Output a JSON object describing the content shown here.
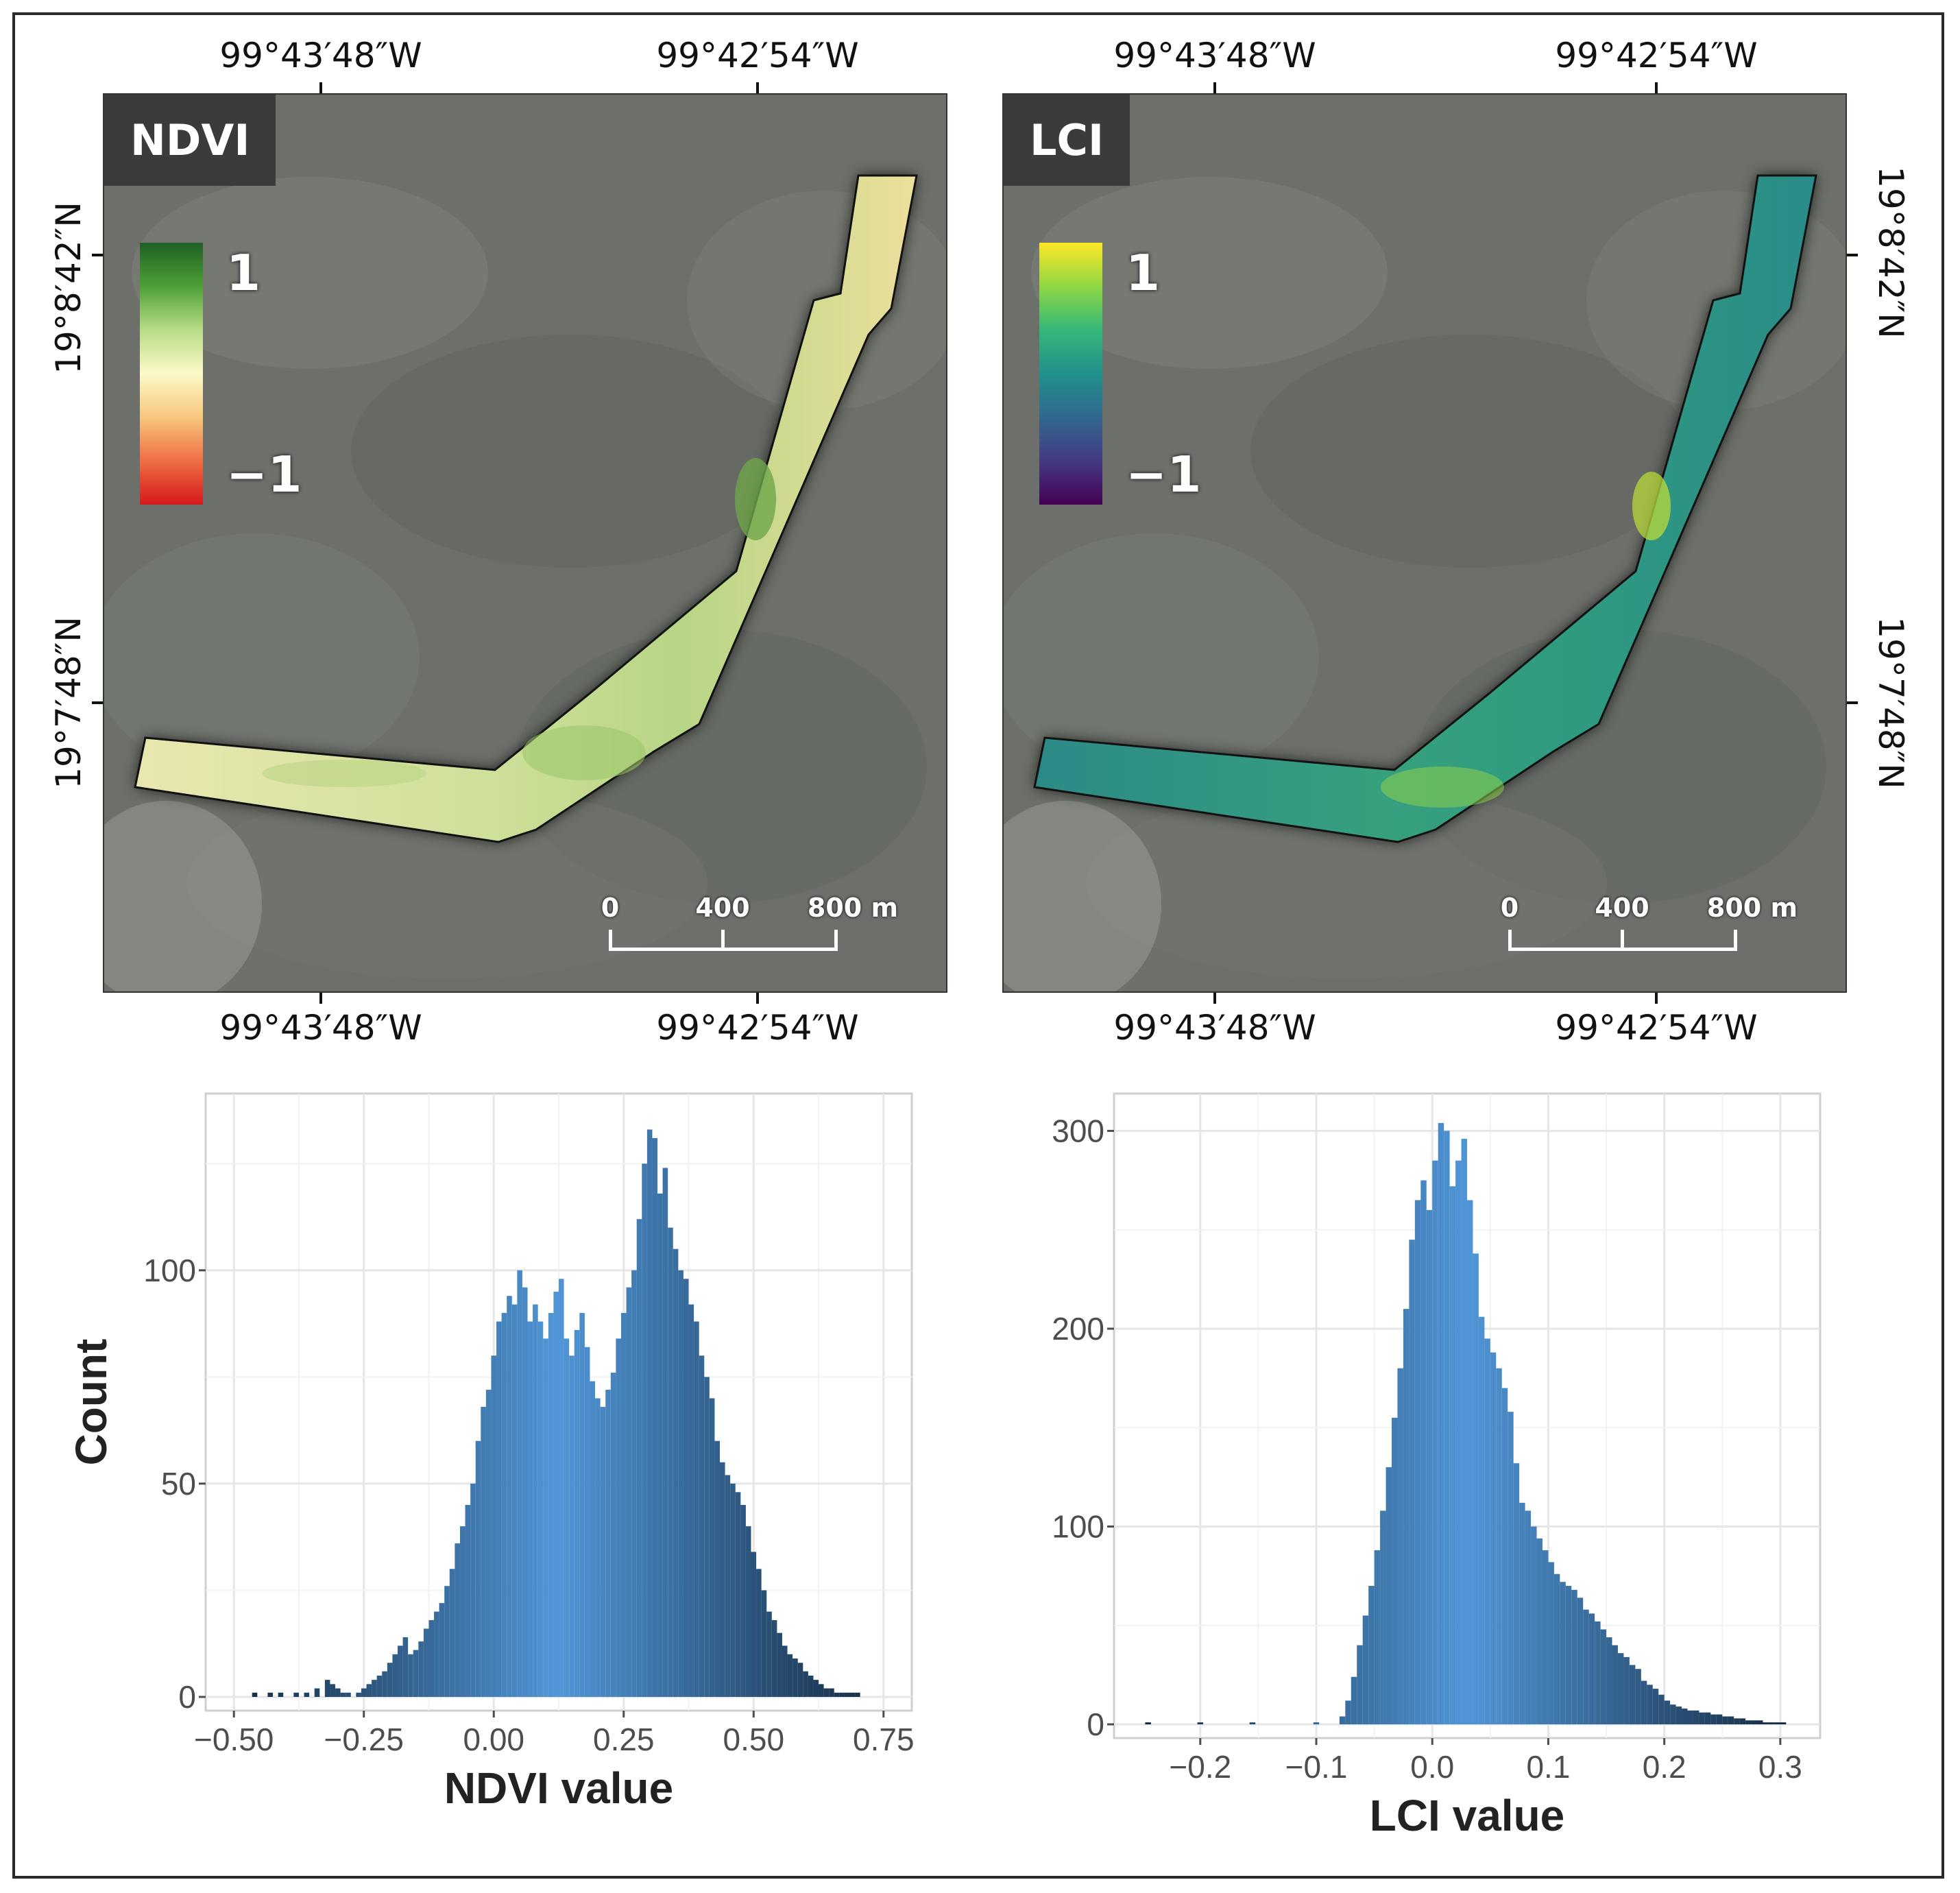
{
  "maps": [
    {
      "title": "NDVI",
      "colorbar": {
        "max_label": "1",
        "min_label": "−1",
        "colors": [
          "#1f5f25",
          "#4fa036",
          "#b7dd86",
          "#fbf9c8",
          "#f7c77e",
          "#ee6d43",
          "#d7191c"
        ]
      },
      "strip_color": "#d8dc9a",
      "coords": {
        "top": [
          "99°43′48″W",
          "99°42′54″W"
        ],
        "bottom": [
          "99°43′48″W",
          "99°42′54″W"
        ],
        "left": [
          "19°8′42″N",
          "19°7′48″N"
        ]
      },
      "scalebar": {
        "labels": [
          "0",
          "400",
          "800 m"
        ]
      }
    },
    {
      "title": "LCI",
      "colorbar": {
        "max_label": "1",
        "min_label": "−1",
        "colors": [
          "#fde725",
          "#90d743",
          "#35b779",
          "#21918c",
          "#31688e",
          "#443983",
          "#440154"
        ]
      },
      "strip_color": "#2a8f86",
      "coords": {
        "top": [
          "99°43′48″W",
          "99°42′54″W"
        ],
        "bottom": [
          "99°43′48″W",
          "99°42′54″W"
        ],
        "right": [
          "19°8′42″N",
          "19°7′48″N"
        ]
      },
      "scalebar": {
        "labels": [
          "0",
          "400",
          "800 m"
        ]
      }
    }
  ],
  "chart_data": [
    {
      "type": "bar",
      "xlabel": "NDVI value",
      "ylabel": "Count",
      "xlim": [
        -0.5,
        0.75
      ],
      "ylim": [
        0,
        135
      ],
      "xticks": [
        -0.5,
        -0.25,
        0.0,
        0.25,
        0.5,
        0.75
      ],
      "xtick_labels": [
        "−0.50",
        "−0.25",
        "0.00",
        "0.25",
        "0.50",
        "0.75"
      ],
      "yticks": [
        0,
        50,
        100
      ],
      "ytick_labels": [
        "0",
        "50",
        "100"
      ],
      "grid": true,
      "x": [
        -0.46,
        -0.43,
        -0.41,
        -0.38,
        -0.36,
        -0.34,
        -0.32,
        -0.31,
        -0.3,
        -0.29,
        -0.28,
        -0.26,
        -0.25,
        -0.24,
        -0.23,
        -0.22,
        -0.21,
        -0.2,
        -0.19,
        -0.18,
        -0.17,
        -0.16,
        -0.15,
        -0.14,
        -0.13,
        -0.12,
        -0.11,
        -0.1,
        -0.09,
        -0.08,
        -0.07,
        -0.06,
        -0.05,
        -0.04,
        -0.03,
        -0.02,
        -0.01,
        0.0,
        0.01,
        0.02,
        0.03,
        0.04,
        0.05,
        0.06,
        0.07,
        0.08,
        0.09,
        0.1,
        0.11,
        0.12,
        0.13,
        0.14,
        0.15,
        0.16,
        0.17,
        0.18,
        0.19,
        0.2,
        0.21,
        0.22,
        0.23,
        0.24,
        0.25,
        0.26,
        0.27,
        0.28,
        0.29,
        0.3,
        0.31,
        0.32,
        0.33,
        0.34,
        0.35,
        0.36,
        0.37,
        0.38,
        0.39,
        0.4,
        0.41,
        0.42,
        0.43,
        0.44,
        0.45,
        0.46,
        0.47,
        0.48,
        0.49,
        0.5,
        0.51,
        0.52,
        0.53,
        0.54,
        0.55,
        0.56,
        0.57,
        0.58,
        0.59,
        0.6,
        0.61,
        0.62,
        0.63,
        0.64,
        0.65,
        0.66,
        0.67,
        0.68,
        0.69,
        0.7
      ],
      "values": [
        1,
        1,
        1,
        1,
        1,
        2,
        4,
        3,
        2,
        1,
        1,
        1,
        2,
        3,
        4,
        5,
        6,
        8,
        10,
        12,
        14,
        10,
        11,
        13,
        16,
        18,
        20,
        22,
        26,
        30,
        36,
        40,
        45,
        50,
        60,
        68,
        72,
        80,
        88,
        90,
        94,
        92,
        100,
        96,
        88,
        92,
        88,
        84,
        90,
        95,
        98,
        84,
        80,
        86,
        90,
        82,
        74,
        70,
        68,
        72,
        76,
        84,
        90,
        96,
        100,
        112,
        125,
        133,
        131,
        118,
        124,
        110,
        105,
        100,
        98,
        92,
        88,
        80,
        75,
        70,
        60,
        55,
        52,
        50,
        48,
        45,
        40,
        34,
        30,
        25,
        20,
        18,
        15,
        12,
        10,
        9,
        8,
        6,
        5,
        4,
        3,
        2,
        2,
        1,
        1,
        1,
        1,
        1
      ]
    },
    {
      "type": "bar",
      "xlabel": "LCI value",
      "ylabel": "",
      "xlim": [
        -0.25,
        0.31
      ],
      "ylim": [
        0,
        305
      ],
      "xticks": [
        -0.2,
        -0.1,
        0.0,
        0.1,
        0.2,
        0.3
      ],
      "xtick_labels": [
        "−0.2",
        "−0.1",
        "0.0",
        "0.1",
        "0.2",
        "0.3"
      ],
      "yticks": [
        0,
        100,
        200,
        300
      ],
      "ytick_labels": [
        "0",
        "100",
        "200",
        "300"
      ],
      "grid": true,
      "x": [
        -0.245,
        -0.2,
        -0.155,
        -0.1,
        -0.0775,
        -0.0725,
        -0.0675,
        -0.0625,
        -0.0575,
        -0.0525,
        -0.0475,
        -0.0425,
        -0.0375,
        -0.0325,
        -0.0275,
        -0.0225,
        -0.0175,
        -0.0125,
        -0.0075,
        -0.0025,
        0.0025,
        0.0075,
        0.0125,
        0.0175,
        0.0225,
        0.0275,
        0.0325,
        0.0375,
        0.0425,
        0.0475,
        0.0525,
        0.0575,
        0.0625,
        0.0675,
        0.0725,
        0.0775,
        0.0825,
        0.0875,
        0.0925,
        0.0975,
        0.1025,
        0.1075,
        0.1125,
        0.1175,
        0.1225,
        0.1275,
        0.1325,
        0.1375,
        0.1425,
        0.1475,
        0.1525,
        0.1575,
        0.1625,
        0.1675,
        0.1725,
        0.1775,
        0.1825,
        0.1875,
        0.1925,
        0.1975,
        0.2025,
        0.2075,
        0.2125,
        0.2175,
        0.2225,
        0.2275,
        0.2325,
        0.2375,
        0.2425,
        0.2475,
        0.2525,
        0.2575,
        0.2625,
        0.2675,
        0.2725,
        0.2775,
        0.2825,
        0.2875,
        0.2925,
        0.2975,
        0.3025
      ],
      "values": [
        1,
        1,
        1,
        1,
        4,
        12,
        24,
        40,
        55,
        70,
        88,
        108,
        130,
        155,
        180,
        210,
        245,
        265,
        275,
        260,
        285,
        304,
        300,
        272,
        285,
        296,
        265,
        238,
        206,
        195,
        188,
        180,
        170,
        158,
        132,
        112,
        108,
        100,
        94,
        88,
        82,
        76,
        72,
        70,
        68,
        64,
        58,
        56,
        52,
        48,
        44,
        40,
        36,
        34,
        30,
        28,
        22,
        20,
        18,
        15,
        12,
        10,
        9,
        8,
        7,
        7,
        6,
        6,
        5,
        5,
        4,
        4,
        3,
        3,
        2,
        2,
        2,
        1,
        1,
        1,
        1
      ]
    }
  ]
}
